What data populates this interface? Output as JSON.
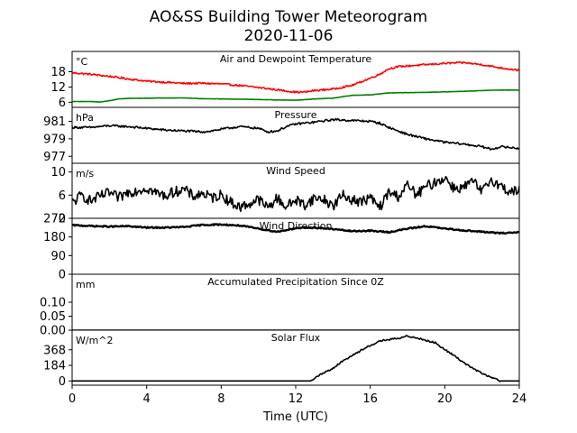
{
  "figure": {
    "title": "AO&SS Building Tower Meteorogram",
    "subtitle": "2020-11-06",
    "xlabel": "Time (UTC)"
  },
  "chart_data": [
    {
      "type": "line",
      "title": "Air and Dewpoint Temperature",
      "unit": "°C",
      "ylim": [
        4,
        26
      ],
      "yticks": [
        "6",
        "12",
        "18"
      ],
      "xlim": [
        0,
        24
      ],
      "series": [
        {
          "color": "#ff0000",
          "x": [
            0,
            1,
            2,
            3,
            4,
            5,
            6,
            7,
            8,
            9,
            10,
            11,
            12,
            12.5,
            13,
            14,
            15,
            15.5,
            16,
            16.5,
            17,
            17.5,
            18,
            19,
            20,
            21,
            22,
            23,
            24
          ],
          "y": [
            17.6,
            17,
            16.2,
            15.2,
            14.3,
            13.9,
            13.4,
            13.5,
            13.2,
            12.6,
            11.8,
            10.9,
            10.0,
            10.0,
            10.6,
            11.2,
            12.6,
            14,
            15.5,
            17,
            19.2,
            20,
            20.3,
            20.8,
            21.3,
            21.6,
            20.8,
            19.5,
            18.6
          ]
        },
        {
          "color": "#008000",
          "x": [
            0,
            1,
            1.5,
            2,
            2.5,
            3,
            4,
            5,
            6,
            7,
            8,
            9,
            10,
            11,
            12,
            13,
            14,
            15,
            16,
            17,
            18,
            19,
            20,
            21,
            22,
            23,
            24
          ],
          "y": [
            6.3,
            6.3,
            6.1,
            6.6,
            7.3,
            7.5,
            7.6,
            7.7,
            7.7,
            7.4,
            7.3,
            7.2,
            7.1,
            6.9,
            6.8,
            7.3,
            7.6,
            8.7,
            8.9,
            9.7,
            9.8,
            9.9,
            10.1,
            10.3,
            10.6,
            10.8,
            10.8
          ]
        }
      ]
    },
    {
      "type": "line",
      "title": "Pressure",
      "unit": "hPa",
      "ylim": [
        976.2,
        982.6
      ],
      "yticks": [
        "977",
        "979",
        "981"
      ],
      "xlim": [
        0,
        24
      ],
      "series": [
        {
          "color": "#000000",
          "x": [
            0,
            1,
            2,
            3,
            4,
            5,
            6,
            7,
            7.5,
            8,
            9,
            10,
            10.5,
            11,
            11.5,
            12,
            13,
            14,
            15,
            16,
            16.5,
            17,
            18,
            19,
            20,
            21,
            22,
            22.5,
            23,
            24
          ],
          "y": [
            980.3,
            980.3,
            980.5,
            980.4,
            980.2,
            980,
            979.9,
            979.8,
            979.9,
            980.1,
            980.4,
            980.2,
            979.8,
            979.9,
            980.4,
            980.7,
            980.9,
            981.2,
            981.1,
            981,
            980.8,
            980.3,
            979.5,
            979,
            978.6,
            978.4,
            978.1,
            977.8,
            978.1,
            977.9
          ]
        }
      ]
    },
    {
      "type": "line",
      "title": "Wind Speed",
      "unit": "m/s",
      "ylim": [
        2,
        11.5
      ],
      "yticks": [
        "2",
        "6",
        "10"
      ],
      "xlim": [
        0,
        24
      ],
      "series": [
        {
          "color": "#000000",
          "x": [
            0,
            0.5,
            1,
            1.5,
            2,
            2.5,
            3,
            3.5,
            4,
            4.5,
            5,
            5.5,
            6,
            6.5,
            7,
            7.5,
            8,
            8.5,
            9,
            9.5,
            10,
            10.5,
            11,
            11.5,
            12,
            12.5,
            13,
            13.5,
            14,
            14.5,
            15,
            15.5,
            16,
            16.5,
            17,
            17.5,
            18,
            18.5,
            19,
            19.5,
            20,
            20.5,
            21,
            21.5,
            22,
            22.5,
            23,
            23.5,
            24
          ],
          "y": [
            4.6,
            6,
            5,
            5.8,
            6.4,
            5.5,
            6.5,
            6.8,
            7.2,
            6.4,
            5.9,
            6.6,
            7,
            5.8,
            6.3,
            5.5,
            6.1,
            4.8,
            3.9,
            4.5,
            5.3,
            3.8,
            5.5,
            4,
            5.2,
            4.3,
            5.5,
            5.3,
            4.1,
            6,
            5.3,
            4.8,
            5.6,
            3.8,
            6.5,
            5.8,
            7.7,
            6,
            7.5,
            8.2,
            9,
            7.2,
            7.3,
            8.4,
            6.5,
            8.8,
            7.5,
            6.6,
            6.8
          ]
        }
      ]
    },
    {
      "type": "line",
      "title": "Wind Direction",
      "unit": "",
      "ylim": [
        0,
        270
      ],
      "yticks": [
        "0",
        "90",
        "180",
        "270"
      ],
      "xlim": [
        0,
        24
      ],
      "series": [
        {
          "color": "#000000",
          "x": [
            0,
            1,
            2,
            3,
            4,
            5,
            6,
            7,
            8,
            9,
            10,
            11,
            12,
            13,
            14,
            15,
            16,
            17,
            18,
            19,
            20,
            21,
            22,
            23,
            24
          ],
          "y": [
            237,
            233,
            230,
            232,
            225,
            225,
            228,
            238,
            240,
            235,
            220,
            205,
            222,
            225,
            218,
            208,
            210,
            203,
            220,
            232,
            220,
            212,
            205,
            198,
            203
          ]
        }
      ]
    },
    {
      "type": "line",
      "title": "Accumulated Precipitation Since 0Z",
      "unit": "mm",
      "ylim": [
        0,
        0.2
      ],
      "yticks": [
        "0.00",
        "0.05",
        "0.10"
      ],
      "xlim": [
        0,
        24
      ],
      "series": [
        {
          "color": "#000000",
          "x": [
            0,
            24
          ],
          "y": [
            0,
            0
          ]
        }
      ]
    },
    {
      "type": "line",
      "title": "Solar Flux",
      "unit": "W/m^2",
      "ylim": [
        -50,
        600
      ],
      "yticks": [
        "0",
        "184",
        "368"
      ],
      "xlim": [
        0,
        24
      ],
      "series": [
        {
          "color": "#000000",
          "x": [
            0,
            12.8,
            13.2,
            14,
            14.5,
            15,
            15.5,
            16,
            16.5,
            17,
            17.5,
            18,
            18.5,
            19,
            19.5,
            20,
            20.5,
            21,
            21.5,
            22,
            22.5,
            23,
            24
          ],
          "y": [
            0,
            0,
            60,
            150,
            230,
            300,
            360,
            420,
            470,
            490,
            500,
            530,
            510,
            480,
            450,
            370,
            300,
            220,
            150,
            90,
            40,
            0,
            0
          ]
        }
      ]
    }
  ],
  "x_ticks": [
    "0",
    "4",
    "8",
    "12",
    "16",
    "20",
    "24"
  ]
}
